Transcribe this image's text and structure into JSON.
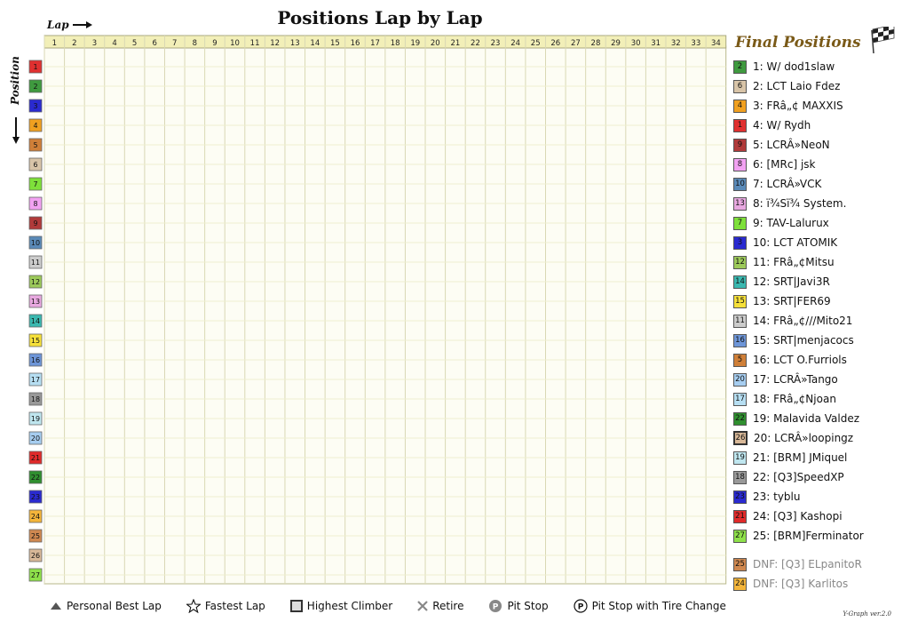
{
  "chart_data": {
    "type": "line",
    "title": "Positions Lap by Lap",
    "xlabel": "Lap",
    "ylabel": "Position",
    "laps": [
      1,
      2,
      3,
      4,
      5,
      6,
      7,
      8,
      9,
      10,
      11,
      12,
      13,
      14,
      15,
      16,
      17,
      18,
      19,
      20,
      21,
      22,
      23,
      24,
      25,
      26,
      27,
      28,
      29,
      30,
      31,
      32,
      33,
      34
    ],
    "start_positions": [
      {
        "pos": 1,
        "color": "#e03030"
      },
      {
        "pos": 2,
        "color": "#3f9a3f"
      },
      {
        "pos": 3,
        "color": "#2a2ad0"
      },
      {
        "pos": 4,
        "color": "#f0a020"
      },
      {
        "pos": 5,
        "color": "#cf7f38"
      },
      {
        "pos": 6,
        "color": "#d8c4a8"
      },
      {
        "pos": 7,
        "color": "#7ee03a"
      },
      {
        "pos": 8,
        "color": "#f2a2f2"
      },
      {
        "pos": 9,
        "color": "#b03a3a"
      },
      {
        "pos": 10,
        "color": "#5a8ab8"
      },
      {
        "pos": 11,
        "color": "#cccccc"
      },
      {
        "pos": 12,
        "color": "#9cc95a"
      },
      {
        "pos": 13,
        "color": "#e8a8e0"
      },
      {
        "pos": 14,
        "color": "#3ab8b0"
      },
      {
        "pos": 15,
        "color": "#f6e03a"
      },
      {
        "pos": 16,
        "color": "#6d95d8"
      },
      {
        "pos": 17,
        "color": "#b6def2"
      },
      {
        "pos": 18,
        "color": "#999999"
      },
      {
        "pos": 19,
        "color": "#bfe6ef"
      },
      {
        "pos": 20,
        "color": "#a6cdf0"
      },
      {
        "pos": 21,
        "color": "#e02a2a"
      },
      {
        "pos": 22,
        "color": "#2f8f2f"
      },
      {
        "pos": 23,
        "color": "#2a2ad0"
      },
      {
        "pos": 24,
        "color": "#f4b53a"
      },
      {
        "pos": 25,
        "color": "#cf8850"
      },
      {
        "pos": 26,
        "color": "#d8b898"
      },
      {
        "pos": 27,
        "color": "#8ee04a"
      }
    ],
    "final_positions": [
      {
        "label": "1: W/ dod1slaw",
        "start": 2,
        "color": "#3f9a3f"
      },
      {
        "label": "2: LCT Laio Fdez",
        "start": 6,
        "color": "#d8c4a8"
      },
      {
        "label": "3: FRâ„¢ MAXXIS",
        "start": 4,
        "color": "#f0a020"
      },
      {
        "label": "4: W/ Rydh",
        "start": 1,
        "color": "#e03030"
      },
      {
        "label": "5: LCRÂ»NeoN",
        "start": 9,
        "color": "#b03a3a"
      },
      {
        "label": "6: [MRc] jsk",
        "start": 8,
        "color": "#f2a2f2"
      },
      {
        "label": "7: LCRÂ»VCK",
        "start": 10,
        "color": "#5a8ab8"
      },
      {
        "label": "8: ï¾Sï¾ System.",
        "start": 13,
        "color": "#e8a8e0"
      },
      {
        "label": "9: TAV-Lalurux",
        "start": 7,
        "color": "#7ee03a"
      },
      {
        "label": "10: LCT ATOMIK",
        "start": 3,
        "color": "#2a2ad0"
      },
      {
        "label": "11: FRâ„¢Mitsu",
        "start": 12,
        "color": "#9cc95a"
      },
      {
        "label": "12: SRT|Javi3R",
        "start": 14,
        "color": "#3ab8b0"
      },
      {
        "label": "13: SRT|FER69",
        "start": 15,
        "color": "#f6e03a"
      },
      {
        "label": "14: FRâ„¢///Mito21",
        "start": 11,
        "color": "#cccccc"
      },
      {
        "label": "15: SRT|menjacocs",
        "start": 16,
        "color": "#6d95d8"
      },
      {
        "label": "16: LCT O.Furriols",
        "start": 5,
        "color": "#cf7f38"
      },
      {
        "label": "17: LCRÂ»Tango",
        "start": 20,
        "color": "#a6cdf0"
      },
      {
        "label": "18: FRâ„¢Njoan",
        "start": 17,
        "color": "#b6def2"
      },
      {
        "label": "19: Malavida Valdez",
        "start": 22,
        "color": "#2f8f2f"
      },
      {
        "label": "20: LCRÂ»loopingz",
        "start": 26,
        "color": "#d8b898",
        "highest_climber": true
      },
      {
        "label": "21: [BRM] JMiquel",
        "start": 19,
        "color": "#bfe6ef"
      },
      {
        "label": "22: [Q3]SpeedXP",
        "start": 18,
        "color": "#999999"
      },
      {
        "label": "23: tyblu",
        "start": 23,
        "color": "#2a2ad0"
      },
      {
        "label": "24: [Q3] Kashopi",
        "start": 21,
        "color": "#e02a2a"
      },
      {
        "label": "25: [BRM]Ferminator",
        "start": 27,
        "color": "#8ee04a"
      }
    ],
    "dnf": [
      {
        "label": "DNF: [Q3] ELpanitoR",
        "start": 25,
        "color": "#cf8850"
      },
      {
        "label": "DNF: [Q3] Karlitos",
        "start": 24,
        "color": "#f4b53a"
      }
    ],
    "legend": [
      {
        "icon": "personal-best-triangle-icon",
        "label": "Personal Best Lap"
      },
      {
        "icon": "fastest-lap-star-icon",
        "label": "Fastest Lap"
      },
      {
        "icon": "highest-climber-square-icon",
        "label": "Highest Climber"
      },
      {
        "icon": "retire-x-icon",
        "label": "Retire"
      },
      {
        "icon": "pit-stop-circle-icon",
        "label": "Pit Stop"
      },
      {
        "icon": "pit-tire-change-circle-icon",
        "label": "Pit Stop with Tire Change"
      }
    ]
  },
  "final_title": "Final Positions",
  "version": "Y-Graph ver.2.0"
}
